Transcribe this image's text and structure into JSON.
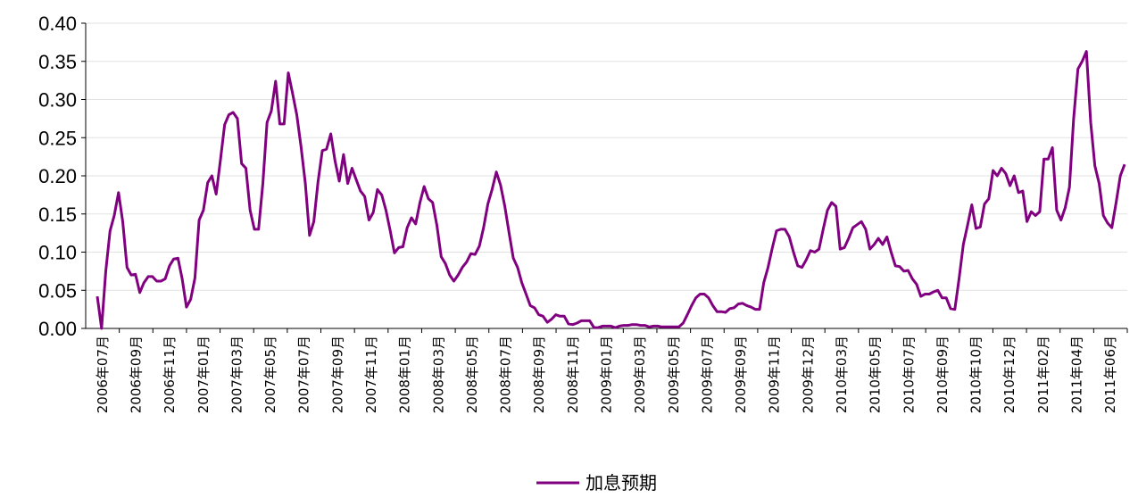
{
  "chart_data": {
    "type": "line",
    "title": "",
    "xlabel": "",
    "ylabel": "",
    "ylim": [
      0,
      0.4
    ],
    "yticks": [
      "0.00",
      "0.05",
      "0.10",
      "0.15",
      "0.20",
      "0.25",
      "0.30",
      "0.35",
      "0.40"
    ],
    "xticks": [
      "2006年07月",
      "2006年09月",
      "2006年11月",
      "2007年01月",
      "2007年03月",
      "2007年05月",
      "2007年07月",
      "2007年09月",
      "2007年11月",
      "2008年01月",
      "2008年03月",
      "2008年05月",
      "2008年07月",
      "2008年09月",
      "2008年11月",
      "2009年01月",
      "2009年03月",
      "2009年05月",
      "2009年07月",
      "2009年09月",
      "2009年11月",
      "2009年12月",
      "2010年03月",
      "2010年05月",
      "2010年07月",
      "2010年09月",
      "2010年10月",
      "2010年12月",
      "2011年02月",
      "2011年04月",
      "2011年06月"
    ],
    "grid": true,
    "legend": "bottom",
    "series": [
      {
        "name": "加息预期",
        "color": "#800080",
        "values": [
          0.042,
          0.0,
          0.075,
          0.128,
          0.148,
          0.178,
          0.14,
          0.08,
          0.07,
          0.071,
          0.047,
          0.06,
          0.068,
          0.068,
          0.062,
          0.062,
          0.065,
          0.082,
          0.091,
          0.092,
          0.065,
          0.028,
          0.038,
          0.066,
          0.142,
          0.155,
          0.191,
          0.2,
          0.176,
          0.22,
          0.267,
          0.28,
          0.283,
          0.275,
          0.216,
          0.21,
          0.155,
          0.13,
          0.13,
          0.19,
          0.27,
          0.285,
          0.324,
          0.268,
          0.268,
          0.335,
          0.308,
          0.28,
          0.238,
          0.19,
          0.122,
          0.14,
          0.192,
          0.233,
          0.235,
          0.255,
          0.22,
          0.193,
          0.228,
          0.19,
          0.21,
          0.195,
          0.18,
          0.173,
          0.142,
          0.152,
          0.182,
          0.175,
          0.155,
          0.128,
          0.099,
          0.106,
          0.107,
          0.132,
          0.145,
          0.137,
          0.165,
          0.186,
          0.17,
          0.165,
          0.135,
          0.094,
          0.085,
          0.07,
          0.062,
          0.07,
          0.08,
          0.087,
          0.098,
          0.097,
          0.108,
          0.132,
          0.163,
          0.182,
          0.205,
          0.188,
          0.16,
          0.125,
          0.092,
          0.08,
          0.06,
          0.045,
          0.03,
          0.027,
          0.018,
          0.016,
          0.008,
          0.012,
          0.018,
          0.016,
          0.016,
          0.006,
          0.005,
          0.007,
          0.01,
          0.01,
          0.01,
          0.001,
          0.001,
          0.003,
          0.003,
          0.003,
          0.001,
          0.003,
          0.004,
          0.004,
          0.005,
          0.005,
          0.004,
          0.004,
          0.002,
          0.003,
          0.003,
          0.002,
          0.002,
          0.002,
          0.002,
          0.002,
          0.007,
          0.018,
          0.03,
          0.04,
          0.045,
          0.045,
          0.04,
          0.03,
          0.022,
          0.022,
          0.021,
          0.026,
          0.027,
          0.032,
          0.033,
          0.03,
          0.028,
          0.025,
          0.025,
          0.06,
          0.08,
          0.105,
          0.128,
          0.13,
          0.13,
          0.12,
          0.1,
          0.082,
          0.08,
          0.09,
          0.102,
          0.1,
          0.104,
          0.13,
          0.155,
          0.165,
          0.16,
          0.104,
          0.106,
          0.118,
          0.132,
          0.136,
          0.14,
          0.13,
          0.104,
          0.11,
          0.118,
          0.11,
          0.12,
          0.1,
          0.082,
          0.081,
          0.075,
          0.076,
          0.065,
          0.058,
          0.042,
          0.045,
          0.045,
          0.048,
          0.05,
          0.04,
          0.04,
          0.026,
          0.025,
          0.065,
          0.11,
          0.135,
          0.162,
          0.131,
          0.133,
          0.163,
          0.17,
          0.207,
          0.2,
          0.21,
          0.203,
          0.187,
          0.2,
          0.178,
          0.18,
          0.14,
          0.153,
          0.148,
          0.153,
          0.222,
          0.222,
          0.237,
          0.155,
          0.142,
          0.158,
          0.185,
          0.275,
          0.34,
          0.35,
          0.363,
          0.27,
          0.213,
          0.19,
          0.148,
          0.138,
          0.132,
          0.165,
          0.2,
          0.215
        ]
      }
    ]
  }
}
